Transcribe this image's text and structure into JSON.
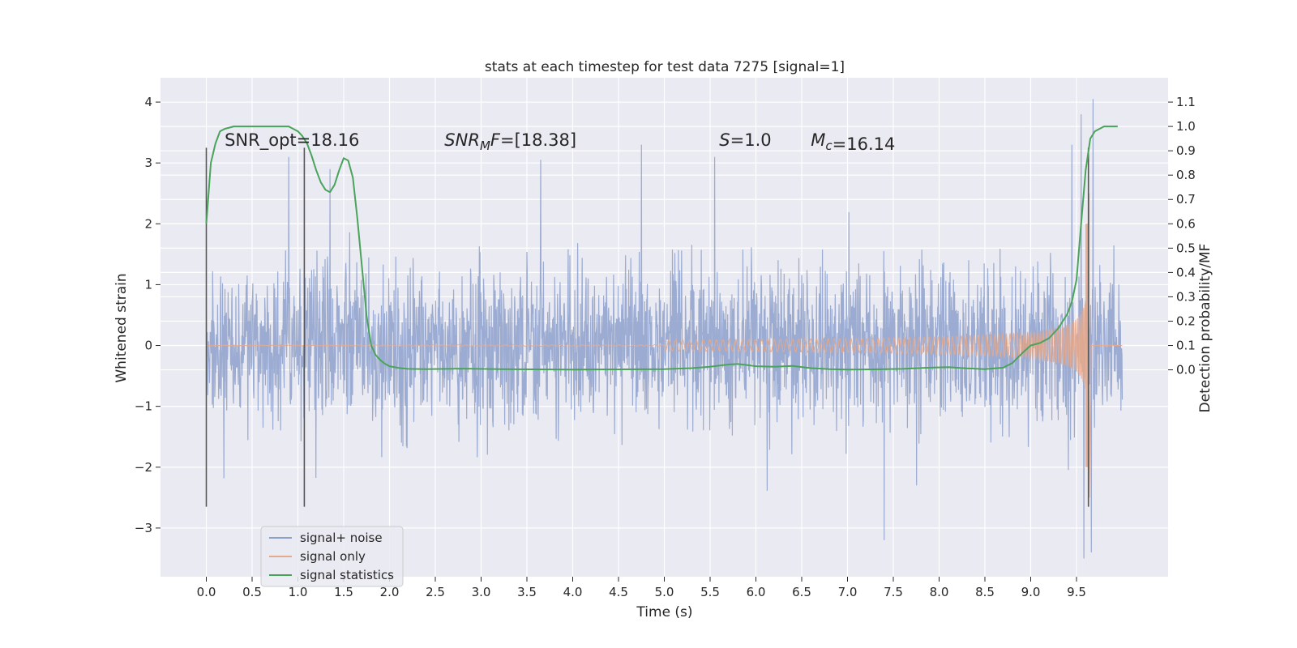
{
  "chart_data": {
    "type": "line",
    "title": "stats at each timestep for test data 7275 [signal=1]",
    "xlabel": "Time (s)",
    "ylabel": "Whitened strain",
    "y2label": "Detection probability/MF",
    "xlim": [
      -0.5,
      10.5
    ],
    "ylim": [
      -3.8,
      4.4
    ],
    "y2lim": [
      -0.85,
      1.2
    ],
    "x_ticks": [
      0.0,
      0.5,
      1.0,
      1.5,
      2.0,
      2.5,
      3.0,
      3.5,
      4.0,
      4.5,
      5.0,
      5.5,
      6.0,
      6.5,
      7.0,
      7.5,
      8.0,
      8.5,
      9.0,
      9.5
    ],
    "x_tick_labels": [
      "0.0",
      "0.5",
      "1.0",
      "1.5",
      "2.0",
      "2.5",
      "3.0",
      "3.5",
      "4.0",
      "4.5",
      "5.0",
      "5.5",
      "6.0",
      "6.5",
      "7.0",
      "7.5",
      "8.0",
      "8.5",
      "9.0",
      "9.5"
    ],
    "y_ticks": [
      4,
      3,
      2,
      1,
      0,
      -1,
      -2,
      -3
    ],
    "y_tick_labels": [
      "4",
      "3",
      "2",
      "1",
      "0",
      "−1",
      "−2",
      "−3"
    ],
    "y2_ticks": [
      1.1,
      1.0,
      0.9,
      0.8,
      0.7,
      0.6,
      0.5,
      0.4,
      0.3,
      0.2,
      0.1,
      0.0
    ],
    "y2_tick_labels": [
      "1.1",
      "1.0",
      "0.9",
      "0.8",
      "0.7",
      "0.6",
      "0.5",
      "0.4",
      "0.3",
      "0.2",
      "0.1",
      "0.0"
    ],
    "grid": true,
    "legend_position": "lower-left",
    "annotations": [
      {
        "x": 0.2,
        "text": "SNR_opt=18.16"
      },
      {
        "x": 2.6,
        "text": "SNR_MF=[18.38]"
      },
      {
        "x": 5.6,
        "text": "S=1.0"
      },
      {
        "x": 6.6,
        "text": "M_c=16.14"
      }
    ],
    "annotation_parts": [
      {
        "plain": "SNR_opt=18.16"
      },
      {
        "italic": "SNR",
        "sub": "MF",
        "plain_italic": "F",
        "rest": "=[18.38]"
      },
      {
        "italic": "S",
        "rest": "=1.0"
      },
      {
        "italic": "M",
        "sub": "c",
        "rest": "=16.14"
      }
    ],
    "vertical_markers": [
      {
        "x": 0.0,
        "y_range": [
          -2.65,
          3.25
        ]
      },
      {
        "x": 1.07,
        "y_range": [
          -2.65,
          3.25
        ]
      },
      {
        "x": 9.63,
        "y_range": [
          -2.65,
          3.25
        ]
      }
    ],
    "series": [
      {
        "name": "signal+ noise",
        "color": "#8da0cb",
        "kind": "noise",
        "x_range": [
          0.0,
          10.0
        ],
        "sigma": 0.62,
        "spikes": [
          {
            "x": 0.9,
            "y": 3.1
          },
          {
            "x": 1.35,
            "y": 2.9
          },
          {
            "x": 3.65,
            "y": 3.05
          },
          {
            "x": 4.75,
            "y": 3.3
          },
          {
            "x": 5.55,
            "y": 3.1
          },
          {
            "x": 7.4,
            "y": -3.2
          },
          {
            "x": 9.45,
            "y": 3.3
          },
          {
            "x": 9.58,
            "y": -3.5
          },
          {
            "x": 9.68,
            "y": 4.05
          },
          {
            "x": 9.66,
            "y": -3.4
          },
          {
            "x": 9.55,
            "y": 3.8
          }
        ]
      },
      {
        "name": "signal only",
        "color": "#e5a98c",
        "kind": "chirp",
        "x_range": [
          0.0,
          9.64
        ],
        "amp_end": 2.0
      },
      {
        "name": "signal statistics",
        "color": "#4aa35a",
        "axis": "y2",
        "x": [
          0.0,
          0.05,
          0.1,
          0.15,
          0.2,
          0.3,
          0.5,
          0.7,
          0.9,
          1.0,
          1.05,
          1.1,
          1.15,
          1.2,
          1.25,
          1.3,
          1.35,
          1.4,
          1.45,
          1.5,
          1.55,
          1.6,
          1.65,
          1.7,
          1.75,
          1.8,
          1.85,
          1.9,
          1.95,
          2.0,
          2.1,
          2.2,
          2.4,
          2.8,
          3.2,
          3.6,
          4.0,
          4.5,
          5.0,
          5.3,
          5.5,
          5.7,
          5.8,
          5.9,
          6.0,
          6.2,
          6.4,
          6.6,
          6.8,
          7.0,
          7.3,
          7.6,
          7.9,
          8.1,
          8.3,
          8.5,
          8.7,
          8.8,
          8.9,
          9.0,
          9.1,
          9.2,
          9.3,
          9.4,
          9.45,
          9.5,
          9.55,
          9.6,
          9.65,
          9.7,
          9.8,
          9.9,
          9.95
        ],
        "y": [
          0.6,
          0.85,
          0.93,
          0.98,
          0.99,
          1.0,
          1.0,
          1.0,
          1.0,
          0.98,
          0.96,
          0.93,
          0.88,
          0.82,
          0.77,
          0.74,
          0.73,
          0.76,
          0.82,
          0.87,
          0.86,
          0.79,
          0.62,
          0.42,
          0.22,
          0.1,
          0.06,
          0.04,
          0.025,
          0.015,
          0.008,
          0.004,
          0.003,
          0.005,
          0.003,
          0.002,
          0.001,
          0.002,
          0.003,
          0.007,
          0.013,
          0.022,
          0.024,
          0.02,
          0.015,
          0.013,
          0.016,
          0.007,
          0.003,
          0.001,
          0.002,
          0.004,
          0.009,
          0.011,
          0.006,
          0.003,
          0.009,
          0.028,
          0.066,
          0.1,
          0.11,
          0.13,
          0.17,
          0.23,
          0.28,
          0.37,
          0.6,
          0.82,
          0.95,
          0.98,
          1.0,
          1.0,
          1.0
        ]
      }
    ]
  }
}
